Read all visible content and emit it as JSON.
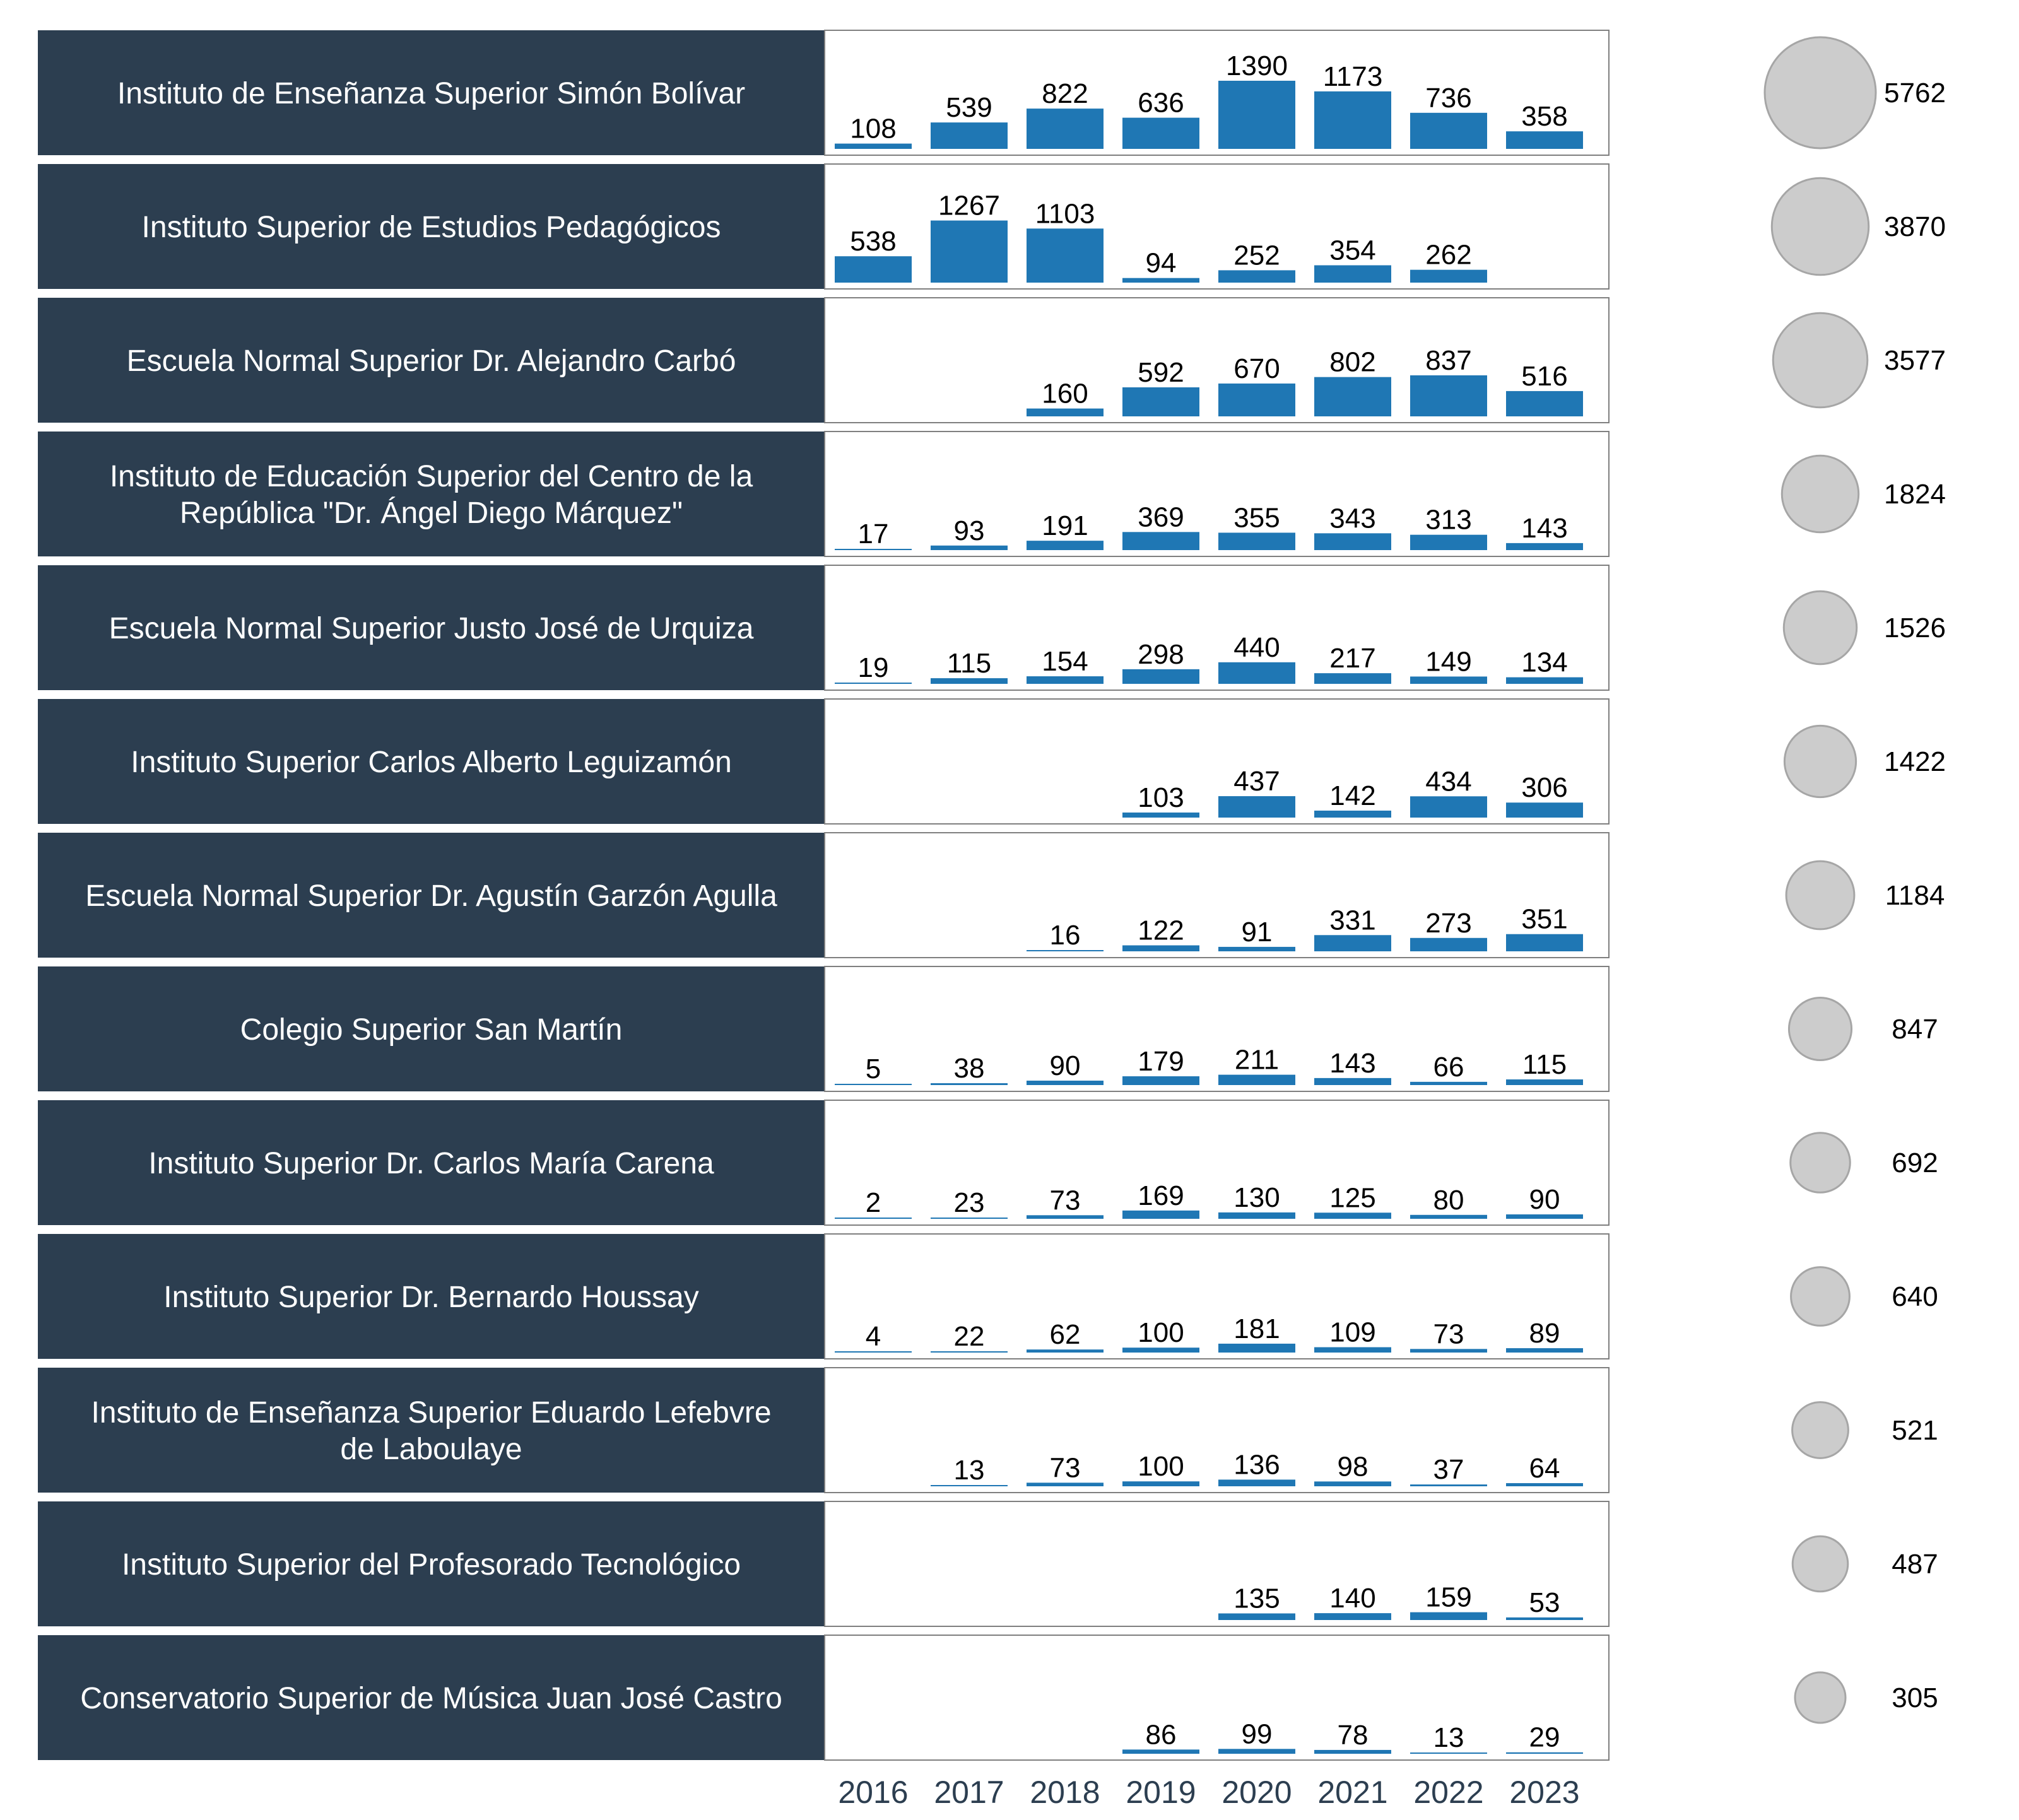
{
  "chart_data": {
    "type": "bar",
    "categories": [
      "2016",
      "2017",
      "2018",
      "2019",
      "2020",
      "2021",
      "2022",
      "2023"
    ],
    "ylim": [
      0,
      1390
    ],
    "grid": false,
    "legend": "none",
    "colors": {
      "bar": "#1f77b4",
      "label_panel": "#2c3e50",
      "label_text": "#ffffff",
      "panel_border": "#7f7f7f",
      "bubble_fill": "#cccccc",
      "bubble_stroke": "#a6a6a6",
      "value_text": "#000000",
      "axis_text": "#2c3e50"
    },
    "series": [
      {
        "name": "Instituto de Enseñanza Superior Simón Bolívar",
        "lines": [
          "Instituto de Enseñanza Superior Simón Bolívar"
        ],
        "values": [
          108,
          539,
          822,
          636,
          1390,
          1173,
          736,
          358
        ],
        "total": 5762
      },
      {
        "name": "Instituto Superior de Estudios Pedagógicos",
        "lines": [
          "Instituto Superior de Estudios Pedagógicos"
        ],
        "values": [
          538,
          1267,
          1103,
          94,
          252,
          354,
          262,
          null
        ],
        "total": 3870
      },
      {
        "name": "Escuela Normal Superior Dr. Alejandro Carbó",
        "lines": [
          "Escuela Normal Superior Dr. Alejandro Carbó"
        ],
        "values": [
          null,
          null,
          160,
          592,
          670,
          802,
          837,
          516
        ],
        "total": 3577
      },
      {
        "name": "Instituto de Educación Superior del Centro de la República \"Dr. Ángel Diego Márquez\"",
        "lines": [
          "Instituto de Educación Superior del Centro de la",
          "República \"Dr. Ángel Diego Márquez\""
        ],
        "values": [
          17,
          93,
          191,
          369,
          355,
          343,
          313,
          143
        ],
        "total": 1824
      },
      {
        "name": "Escuela Normal Superior Justo José de Urquiza",
        "lines": [
          "Escuela Normal Superior Justo José de Urquiza"
        ],
        "values": [
          19,
          115,
          154,
          298,
          440,
          217,
          149,
          134
        ],
        "total": 1526
      },
      {
        "name": "Instituto Superior Carlos Alberto Leguizamón",
        "lines": [
          "Instituto Superior Carlos Alberto Leguizamón"
        ],
        "values": [
          null,
          null,
          null,
          103,
          437,
          142,
          434,
          306
        ],
        "total": 1422
      },
      {
        "name": "Escuela Normal Superior Dr. Agustín Garzón Agulla",
        "lines": [
          "Escuela Normal Superior Dr. Agustín Garzón Agulla"
        ],
        "values": [
          null,
          null,
          16,
          122,
          91,
          331,
          273,
          351
        ],
        "total": 1184
      },
      {
        "name": "Colegio Superior San Martín",
        "lines": [
          "Colegio Superior San Martín"
        ],
        "values": [
          5,
          38,
          90,
          179,
          211,
          143,
          66,
          115
        ],
        "total": 847
      },
      {
        "name": "Instituto Superior Dr. Carlos María Carena",
        "lines": [
          "Instituto Superior Dr. Carlos María Carena"
        ],
        "values": [
          2,
          23,
          73,
          169,
          130,
          125,
          80,
          90
        ],
        "total": 692
      },
      {
        "name": "Instituto Superior Dr. Bernardo Houssay",
        "lines": [
          "Instituto Superior Dr. Bernardo Houssay"
        ],
        "values": [
          4,
          22,
          62,
          100,
          181,
          109,
          73,
          89
        ],
        "total": 640
      },
      {
        "name": "Instituto de Enseñanza Superior Eduardo Lefebvre de Laboulaye",
        "lines": [
          "Instituto de Enseñanza Superior Eduardo Lefebvre",
          "de Laboulaye"
        ],
        "values": [
          null,
          13,
          73,
          100,
          136,
          98,
          37,
          64
        ],
        "total": 521
      },
      {
        "name": "Instituto Superior del Profesorado Tecnológico",
        "lines": [
          "Instituto Superior del Profesorado Tecnológico"
        ],
        "values": [
          null,
          null,
          null,
          null,
          135,
          140,
          159,
          53
        ],
        "total": 487
      },
      {
        "name": "Conservatorio Superior de Música Juan José Castro",
        "lines": [
          "Conservatorio Superior de Música Juan José Castro"
        ],
        "values": [
          null,
          null,
          null,
          86,
          99,
          78,
          13,
          29
        ],
        "total": 305
      }
    ]
  }
}
